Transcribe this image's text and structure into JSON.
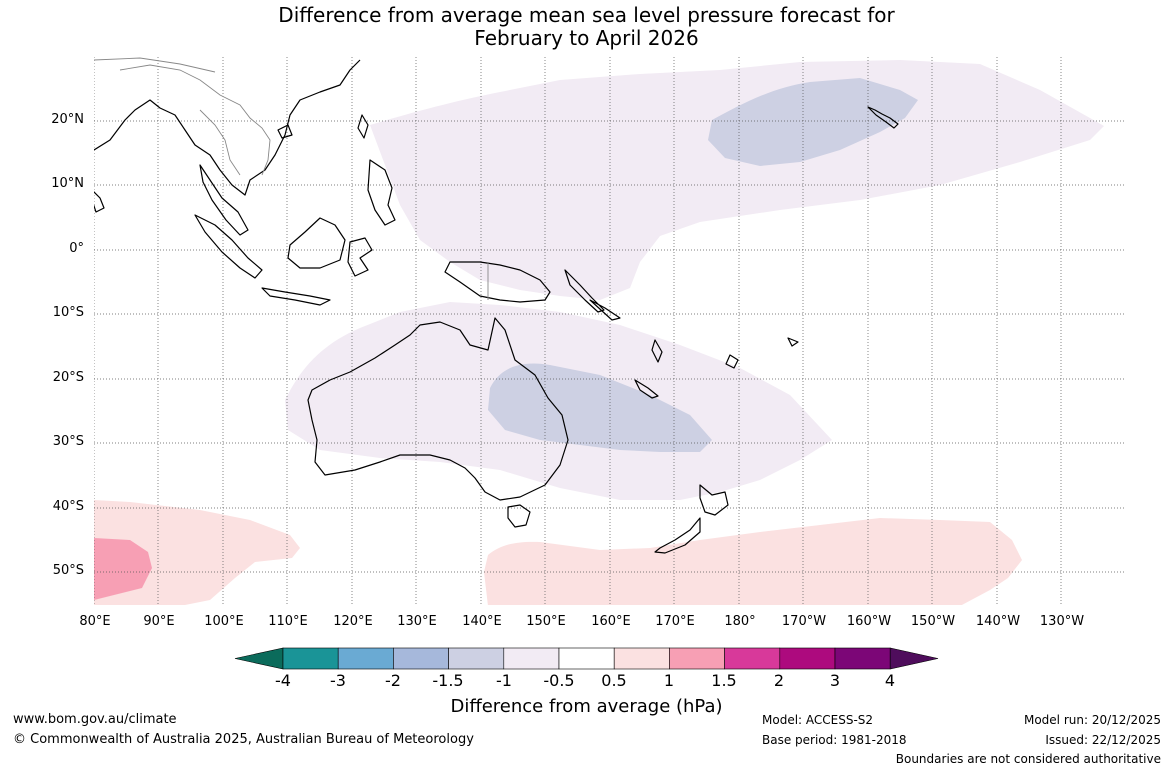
{
  "title_line1": "Difference from average mean sea level pressure forecast for",
  "title_line2": "February to April 2026",
  "lat_labels": [
    "20°N",
    "10°N",
    "0°",
    "10°S",
    "20°S",
    "30°S",
    "40°S",
    "50°S"
  ],
  "lon_labels": [
    "80°E",
    "90°E",
    "100°E",
    "110°E",
    "120°E",
    "130°E",
    "140°E",
    "150°E",
    "160°E",
    "170°E",
    "180°",
    "170°W",
    "160°W",
    "150°W",
    "140°W",
    "130°W"
  ],
  "colorbar": {
    "title": "Difference from average (hPa)",
    "ticks": [
      "-4",
      "-3",
      "-2",
      "-1.5",
      "-1",
      "-0.5",
      "0.5",
      "1",
      "1.5",
      "2",
      "3",
      "4"
    ],
    "colors": [
      "#0b6b5b",
      "#1a9497",
      "#6aaad3",
      "#a6b8db",
      "#cdd0e3",
      "#f2ebf4",
      "#ffffff",
      "#fbe1e1",
      "#f79fb4",
      "#d8399a",
      "#ad0a7e",
      "#7c0677",
      "#4f0d5c"
    ]
  },
  "footer": {
    "website": "www.bom.gov.au/climate",
    "copyright": "© Commonwealth of Australia 2025, Australian Bureau of Meteorology",
    "model": "Model: ACCESS-S2",
    "base_period": "Base period: 1981-2018",
    "model_run": "Model run: 20/12/2025",
    "issued": "Issued: 22/12/2025",
    "disclaimer": "Boundaries are not considered authoritative"
  },
  "legend_colors": {
    "neg_weak": "#f2ebf4",
    "neg_mod": "#cdd0e3",
    "pos_weak": "#fbe1e1",
    "pos_mod": "#f79fb4"
  }
}
